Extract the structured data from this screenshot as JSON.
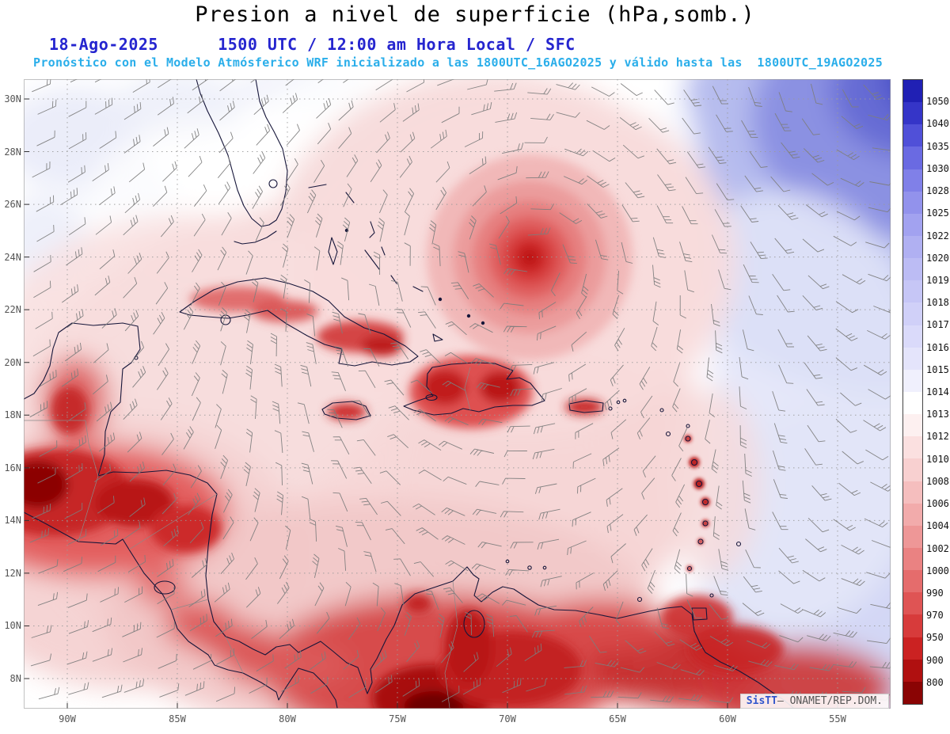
{
  "header": {
    "title": "Presion a nivel de superficie (hPa,somb.)",
    "datetime_line": "18-Ago-2025      1500 UTC / 12:00 am Hora Local / SFC",
    "forecast_line": "Pronóstico con el Modelo Atmósferico WRF inicializado a las 1800UTC_16AGO2025 y válido hasta las  1800UTC_19AGO2025"
  },
  "map": {
    "lat_labels": [
      "30N",
      "28N",
      "26N",
      "24N",
      "22N",
      "20N",
      "18N",
      "16N",
      "14N",
      "12N",
      "10N",
      "8N"
    ],
    "lon_labels": [
      "90W",
      "85W",
      "80W",
      "75W",
      "70W",
      "65W",
      "60W",
      "55W"
    ],
    "attribution": {
      "brand": "SisTT",
      "rest": "— ONAMET/REP.DOM."
    }
  },
  "colorbar": {
    "unit": "hPa",
    "tick_values": [
      "1050",
      "1040",
      "1035",
      "1030",
      "1028",
      "1025",
      "1022",
      "1020",
      "1019",
      "1018",
      "1017",
      "1016",
      "1015",
      "1014",
      "1013",
      "1012",
      "1010",
      "1008",
      "1006",
      "1004",
      "1002",
      "1000",
      "990",
      "970",
      "950",
      "900",
      "800"
    ],
    "segment_colors": [
      "#2020b4",
      "#3535c8",
      "#5050d8",
      "#6a6ae2",
      "#8080e8",
      "#9292ec",
      "#a2a2f0",
      "#b0b0f2",
      "#bcbcf4",
      "#c6c6f6",
      "#d0d0f8",
      "#dadafa",
      "#e4e4fb",
      "#f0f0fd",
      "#ffffff",
      "#fdf0f0",
      "#fbe0e0",
      "#f8d0d0",
      "#f5bebe",
      "#f2abab",
      "#ee9797",
      "#ea8282",
      "#e56c6c",
      "#df5454",
      "#d73b3b",
      "#cb2222",
      "#b01010",
      "#8a0404"
    ]
  },
  "chart_data": {
    "type": "heatmap",
    "title": "Presion a nivel de superficie (hPa,somb.)",
    "valid_time": "18-Ago-2025 1500 UTC / 12:00 am Hora Local / SFC",
    "model_info": "WRF inicializado 1800UTC_16AGO2025, válido hasta 1800UTC_19AGO2025",
    "x_tick_labels": [
      "90W",
      "85W",
      "80W",
      "75W",
      "70W",
      "65W",
      "60W",
      "55W"
    ],
    "y_tick_labels": [
      "30N",
      "28N",
      "26N",
      "24N",
      "22N",
      "20N",
      "18N",
      "16N",
      "14N",
      "12N",
      "10N",
      "8N"
    ],
    "shading_levels_hpa": [
      800,
      900,
      950,
      970,
      990,
      1000,
      1002,
      1004,
      1006,
      1008,
      1010,
      1012,
      1013,
      1014,
      1015,
      1016,
      1017,
      1018,
      1019,
      1020,
      1022,
      1025,
      1028,
      1030,
      1035,
      1040,
      1050
    ],
    "legend_position": "right",
    "grid": "dotted lat/lon graticule every 2 deg lat, 5 deg lon",
    "overlays": [
      "wind barbs",
      "coastlines"
    ],
    "visible_features": [
      {
        "name": "tropical-cyclone-low-center",
        "approx_location": "24N 69W",
        "appearance": "concentric red shading with cyclonic wind barbs"
      },
      {
        "name": "subtropical-high",
        "approx_location": "northeast corner of map",
        "appearance": "dark blue shading > 1040 hPa"
      },
      {
        "name": "low-pressure-red-shading",
        "approx_location": "Central America, Greater Antilles and northern South America"
      }
    ]
  }
}
